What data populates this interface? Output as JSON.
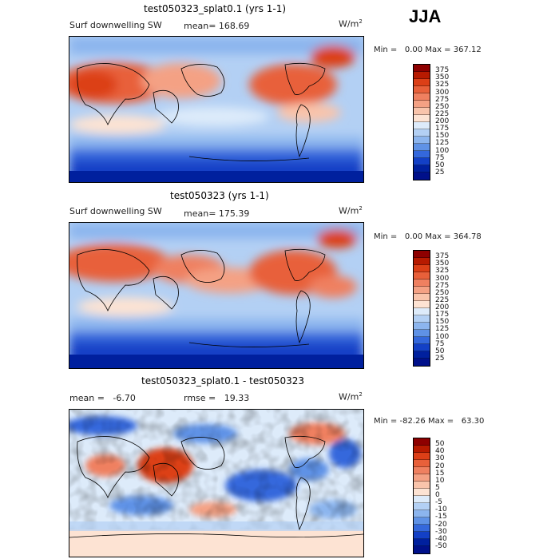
{
  "season": "JJA",
  "panels": [
    {
      "title": "test050323_splat0.1 (yrs 1-1)",
      "left_label": "Surf downwelling SW",
      "stat_label": "mean= 168.69",
      "rmse_label": "",
      "units": "W/m",
      "units_exp": "2",
      "min_label": "Min =",
      "min_value": "0.00",
      "max_label": "Max =",
      "max_value": "367.12",
      "colorbar": {
        "labels": [
          "375",
          "350",
          "325",
          "300",
          "275",
          "250",
          "225",
          "200",
          "175",
          "150",
          "125",
          "100",
          "75",
          "50",
          "25"
        ],
        "colors": [
          "#8e0000",
          "#b71a00",
          "#dc3f17",
          "#e8603a",
          "#ef8060",
          "#f4a184",
          "#f9c4ab",
          "#fde3d3",
          "#ddebfa",
          "#b3d0f4",
          "#8cb5ee",
          "#5f92e6",
          "#3468dc",
          "#1340c6",
          "#00209e",
          "#00108a"
        ]
      }
    },
    {
      "title": "test050323 (yrs 1-1)",
      "left_label": "Surf downwelling SW",
      "stat_label": "mean= 175.39",
      "rmse_label": "",
      "units": "W/m",
      "units_exp": "2",
      "min_label": "Min =",
      "min_value": "0.00",
      "max_label": "Max =",
      "max_value": "364.78",
      "colorbar": {
        "labels": [
          "375",
          "350",
          "325",
          "300",
          "275",
          "250",
          "225",
          "200",
          "175",
          "150",
          "125",
          "100",
          "75",
          "50",
          "25"
        ],
        "colors": [
          "#8e0000",
          "#b71a00",
          "#dc3f17",
          "#e8603a",
          "#ef8060",
          "#f4a184",
          "#f9c4ab",
          "#fde3d3",
          "#ddebfa",
          "#b3d0f4",
          "#8cb5ee",
          "#5f92e6",
          "#3468dc",
          "#1340c6",
          "#00209e",
          "#00108a"
        ]
      }
    },
    {
      "title": "test050323_splat0.1 - test050323",
      "left_label": "mean =   -6.70",
      "stat_label": "",
      "rmse_label": "rmse =   19.33",
      "units": "W/m",
      "units_exp": "2",
      "min_label": "Min =",
      "min_value": "-82.26",
      "max_label": "Max =",
      "max_value": "63.30",
      "colorbar": {
        "labels": [
          "50",
          "40",
          "30",
          "20",
          "15",
          "10",
          "5",
          "0",
          "-5",
          "-10",
          "-15",
          "-20",
          "-30",
          "-40",
          "-50"
        ],
        "colors": [
          "#8e0000",
          "#b71a00",
          "#dc3f17",
          "#e8603a",
          "#ef8060",
          "#f4a184",
          "#f9c4ab",
          "#fde3d3",
          "#ddebfa",
          "#b3d0f4",
          "#8cb5ee",
          "#5f92e6",
          "#3468dc",
          "#1340c6",
          "#00209e",
          "#00108a"
        ]
      }
    }
  ]
}
